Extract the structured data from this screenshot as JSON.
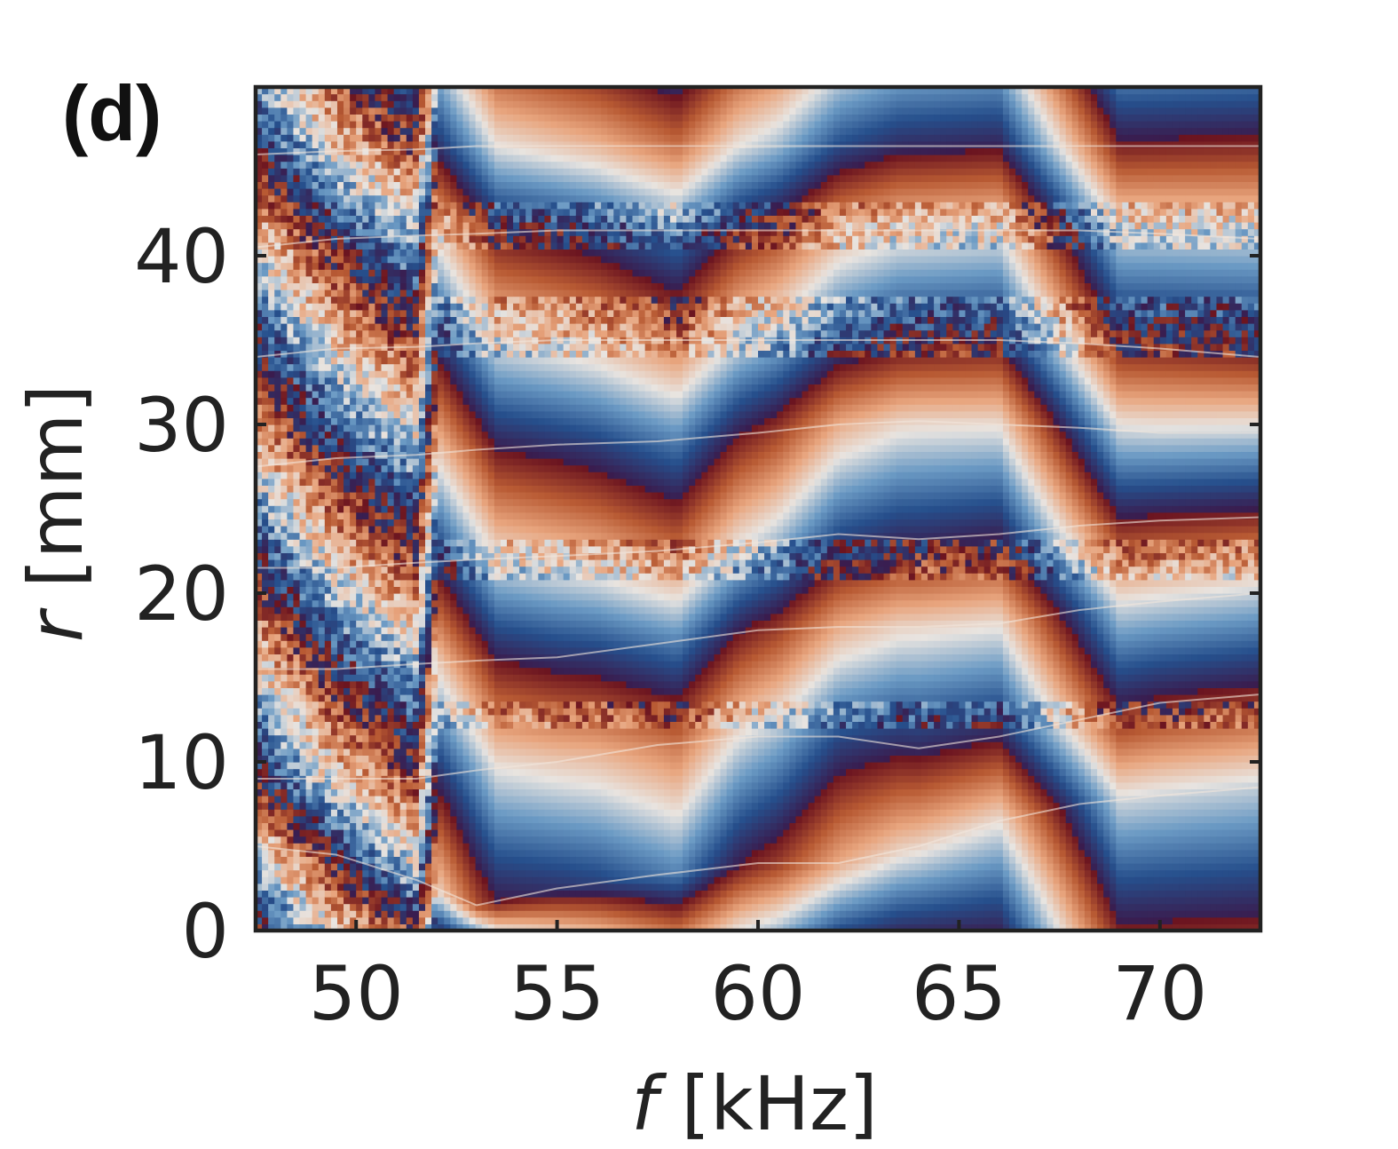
{
  "chart_data": {
    "type": "heatmap",
    "panel_label": "(d)",
    "title": "",
    "xlabel_var": "f",
    "xlabel_unit": " [kHz]",
    "ylabel_var": "r",
    "ylabel_unit": " [mm]",
    "xlim": [
      47.5,
      72.5
    ],
    "ylim": [
      0,
      50
    ],
    "xticks": [
      50,
      55,
      60,
      65,
      70
    ],
    "yticks": [
      0,
      10,
      20,
      30,
      40
    ],
    "colormap": [
      "#3a1c4e",
      "#264f8c",
      "#6b9ac4",
      "#e8e4e0",
      "#e8a57e",
      "#b85a33",
      "#6b1420"
    ],
    "grid": false,
    "legend": "none",
    "phase_boundaries": [
      {
        "x": [
          47.5,
          49.5,
          51.5,
          53,
          55,
          57.5,
          60,
          62,
          64,
          66,
          68,
          70,
          72.5
        ],
        "y": [
          5,
          4.5,
          3,
          1.5,
          2.5,
          3.3,
          4,
          4,
          5,
          6.5,
          7.5,
          8,
          8.5
        ]
      },
      {
        "x": [
          47.5,
          49.5,
          51.5,
          53,
          55,
          57.5,
          60,
          62,
          64,
          66,
          68,
          70,
          72.5
        ],
        "y": [
          9,
          9,
          9,
          9.5,
          10,
          11,
          11.5,
          11.5,
          10.8,
          11.5,
          12.5,
          13.5,
          14
        ]
      },
      {
        "x": [
          47.5,
          49.5,
          51.5,
          53,
          55,
          57.5,
          60,
          62,
          64,
          66,
          68,
          70,
          72.5
        ],
        "y": [
          15.5,
          15.5,
          15.8,
          16,
          16.2,
          17,
          17.8,
          18,
          18,
          18.2,
          19,
          19.5,
          20
        ]
      },
      {
        "x": [
          47.5,
          49.5,
          51.5,
          53,
          55,
          57.5,
          60,
          62,
          64,
          66,
          68,
          70,
          72.5
        ],
        "y": [
          21.5,
          21.5,
          21.8,
          22,
          22.2,
          22.5,
          23,
          23.5,
          23.2,
          23.5,
          24,
          24.3,
          24.5
        ]
      },
      {
        "x": [
          47.5,
          49.5,
          51.5,
          53,
          55,
          57.5,
          60,
          62,
          64,
          66,
          68,
          70,
          72.5
        ],
        "y": [
          27.5,
          28,
          28.2,
          28.5,
          28.8,
          29,
          29.5,
          30,
          30.2,
          30,
          29.8,
          29.5,
          29.5
        ]
      },
      {
        "x": [
          47.5,
          49.5,
          51.5,
          53,
          55,
          57.5,
          60,
          62,
          64,
          66,
          68,
          70,
          72.5
        ],
        "y": [
          34,
          34.5,
          34.6,
          34.8,
          35,
          35,
          35,
          35,
          35,
          35,
          34.8,
          34.5,
          34
        ]
      },
      {
        "x": [
          47.5,
          49.5,
          51.5,
          53,
          55,
          57.5,
          60,
          62,
          64,
          66,
          68,
          70,
          72.5
        ],
        "y": [
          40.5,
          41,
          41.2,
          41.3,
          41.5,
          41.5,
          41.5,
          41.5,
          41.5,
          41.5,
          41.5,
          41.3,
          41
        ]
      },
      {
        "x": [
          47.5,
          49.5,
          51.5,
          53,
          55,
          57.5,
          60,
          62,
          64,
          66,
          68,
          70,
          72.5
        ],
        "y": [
          46,
          46.2,
          46.3,
          46.5,
          46.5,
          46.5,
          46.5,
          46.5,
          46.5,
          46.5,
          46.5,
          46.5,
          46.5
        ]
      }
    ],
    "band_vertices_khz": [
      47.5,
      49.5,
      51.5,
      52,
      53.5,
      56,
      58,
      59.5,
      60.5,
      62,
      63.5,
      66,
      69,
      72.5
    ],
    "band_phase_at_vertices": [
      [
        0.0,
        0.55,
        0.9,
        0.05,
        0.5,
        0.62,
        0.78,
        0.5,
        0.4,
        0.15,
        0.05,
        0.02,
        0.97,
        0.95
      ]
    ],
    "noisy_bands": [
      {
        "x": [
          47.5,
          52
        ],
        "y": [
          0,
          50
        ]
      },
      {
        "x": [
          52,
          72.5
        ],
        "y": [
          40.5,
          43
        ]
      },
      {
        "x": [
          52,
          72.5
        ],
        "y": [
          34,
          37.5
        ]
      },
      {
        "x": [
          52,
          72.5
        ],
        "y": [
          21,
          23
        ]
      },
      {
        "x": [
          52,
          72.5
        ],
        "y": [
          12,
          13.5
        ]
      }
    ]
  }
}
